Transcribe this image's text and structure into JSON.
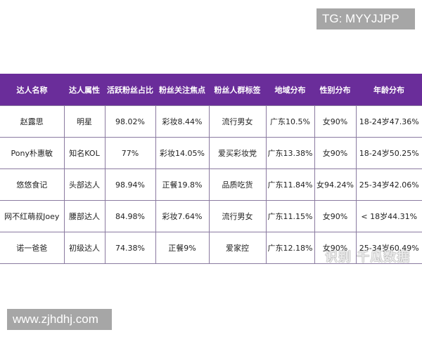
{
  "badges": {
    "tg": "TG: MYYJJPP",
    "site": "www.zjhdhj.com"
  },
  "watermark": "识别 千瓜数据",
  "table": {
    "header_color": "#6a2d9a",
    "columns": [
      "达人名称",
      "达人属性",
      "活跃粉丝占比",
      "粉丝关注焦点",
      "粉丝人群标签",
      "地域分布",
      "性别分布",
      "年龄分布"
    ],
    "rows": [
      [
        "赵露思",
        "明星",
        "98.02%",
        "彩妆8.44%",
        "流行男女",
        "广东10.5%",
        "女90%",
        "18-24岁47.36%"
      ],
      [
        "Pony朴惠敏",
        "知名KOL",
        "77%",
        "彩妆14.05%",
        "爱买彩妆党",
        "广东13.38%",
        "女90%",
        "18-24岁50.25%"
      ],
      [
        "悠悠食记",
        "头部达人",
        "98.94%",
        "正餐19.8%",
        "品质吃货",
        "广东11.84%",
        "女94.24%",
        "25-34岁42.06%"
      ],
      [
        "网不红萌叔Joey",
        "腰部达人",
        "84.98%",
        "彩妆7.64%",
        "流行男女",
        "广东11.15%",
        "女90%",
        "< 18岁44.31%"
      ],
      [
        "诺一爸爸",
        "初级达人",
        "74.38%",
        "正餐9%",
        "爱家控",
        "广东12.18%",
        "女90%",
        "25-34岁60.49%"
      ]
    ]
  }
}
